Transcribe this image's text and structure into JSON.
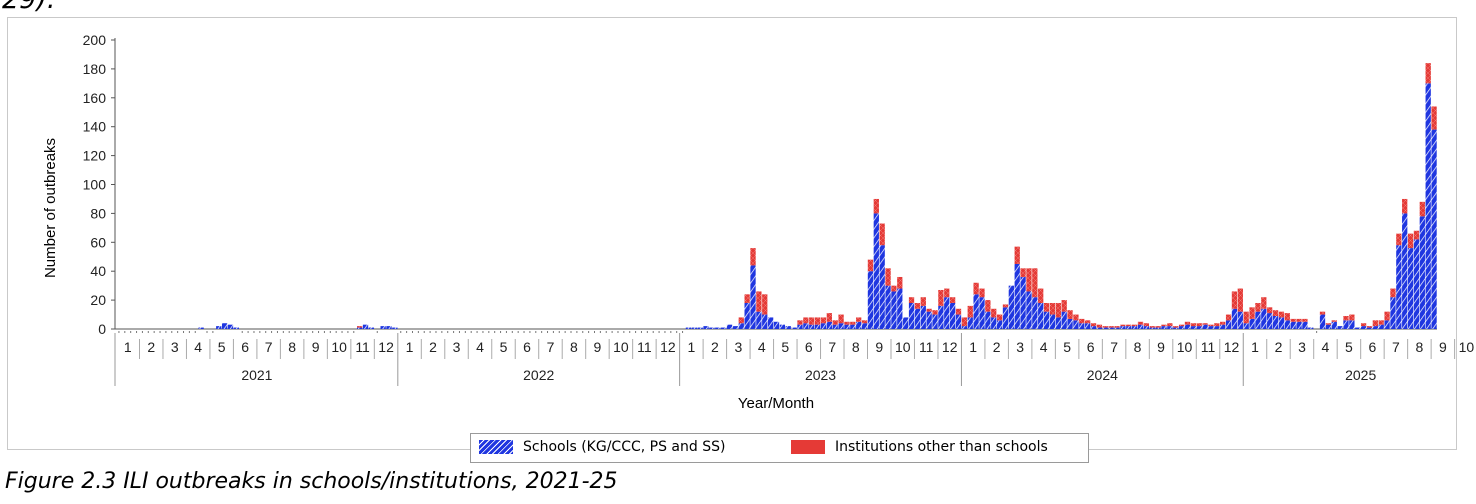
{
  "top_text": "29).",
  "caption": "Figure 2.3 ILI outbreaks in schools/institutions, 2021-25",
  "colors": {
    "schools": "#1f36e0",
    "schools_stripe": "#ffffff",
    "others": "#e53a36",
    "axis": "#555555",
    "tick_text": "#222222"
  },
  "chart_data": {
    "type": "bar",
    "stacked": true,
    "xlabel": "Year/Month",
    "ylabel": "Number of outbreaks",
    "ylim": [
      0,
      200
    ],
    "yticks": [
      0,
      20,
      40,
      60,
      80,
      100,
      120,
      140,
      160,
      180,
      200
    ],
    "grid": false,
    "legend_position": "bottom",
    "years": [
      "2021",
      "2022",
      "2023",
      "2024",
      "2025"
    ],
    "months_per_year": [
      12,
      12,
      12,
      12,
      10
    ],
    "month_labels": [
      "1",
      "2",
      "3",
      "4",
      "5",
      "6",
      "7",
      "8",
      "9",
      "10",
      "11",
      "12"
    ],
    "series": [
      {
        "name": "Schools (KG/CCC, PS and SS)",
        "color_key": "schools",
        "values": [
          0,
          0,
          0,
          0,
          0,
          0,
          0,
          0,
          0,
          0,
          0,
          0,
          0,
          0,
          1,
          0,
          0,
          2,
          4,
          3,
          1,
          0,
          0,
          0,
          0,
          0,
          0,
          0,
          0,
          0,
          0,
          0,
          0,
          0,
          0,
          0,
          0,
          0,
          0,
          0,
          0,
          1,
          3,
          1,
          0,
          2,
          2,
          1,
          0,
          0,
          0,
          0,
          0,
          0,
          0,
          0,
          0,
          0,
          0,
          0,
          0,
          0,
          0,
          0,
          0,
          0,
          0,
          0,
          0,
          0,
          0,
          0,
          0,
          0,
          0,
          0,
          0,
          0,
          0,
          0,
          0,
          0,
          0,
          0,
          0,
          0,
          0,
          0,
          0,
          0,
          0,
          0,
          0,
          0,
          0,
          0,
          0,
          1,
          1,
          1,
          2,
          1,
          1,
          1,
          3,
          2,
          4,
          18,
          44,
          12,
          10,
          8,
          5,
          3,
          2,
          1,
          3,
          4,
          3,
          3,
          4,
          5,
          3,
          4,
          3,
          3,
          5,
          4,
          40,
          80,
          58,
          30,
          26,
          28,
          8,
          18,
          14,
          16,
          12,
          10,
          16,
          22,
          18,
          10,
          2,
          8,
          24,
          22,
          12,
          8,
          6,
          15,
          30,
          45,
          36,
          26,
          22,
          18,
          12,
          10,
          8,
          12,
          7,
          6,
          4,
          4,
          2,
          1,
          1,
          1,
          1,
          2,
          2,
          2,
          3,
          2,
          1,
          1,
          2,
          2,
          1,
          2,
          3,
          2,
          2,
          3,
          2,
          2,
          3,
          6,
          14,
          12,
          4,
          7,
          12,
          14,
          11,
          9,
          8,
          6,
          5,
          5,
          5,
          1,
          0,
          10,
          3,
          5,
          2,
          6,
          6,
          1,
          2,
          1,
          2,
          3,
          6,
          22,
          58,
          80,
          56,
          62,
          78,
          170,
          138
        ]
      },
      {
        "name": "Institutions other than schools",
        "color_key": "others",
        "values": [
          0,
          0,
          0,
          0,
          0,
          0,
          0,
          0,
          0,
          0,
          0,
          0,
          0,
          0,
          0,
          0,
          0,
          0,
          0,
          0,
          0,
          0,
          0,
          0,
          0,
          0,
          0,
          0,
          0,
          0,
          0,
          0,
          0,
          0,
          0,
          0,
          0,
          0,
          0,
          0,
          0,
          1,
          0,
          0,
          0,
          0,
          0,
          0,
          0,
          0,
          0,
          0,
          0,
          0,
          0,
          0,
          0,
          0,
          0,
          0,
          0,
          0,
          0,
          0,
          0,
          0,
          0,
          0,
          0,
          0,
          0,
          0,
          0,
          0,
          0,
          0,
          0,
          0,
          0,
          0,
          0,
          0,
          0,
          0,
          0,
          0,
          0,
          0,
          0,
          0,
          0,
          0,
          0,
          0,
          0,
          0,
          0,
          0,
          0,
          0,
          0,
          0,
          0,
          0,
          0,
          0,
          4,
          6,
          12,
          14,
          14,
          0,
          0,
          0,
          0,
          0,
          3,
          4,
          5,
          5,
          4,
          6,
          3,
          6,
          2,
          2,
          3,
          2,
          8,
          10,
          15,
          12,
          4,
          8,
          0,
          4,
          4,
          6,
          2,
          3,
          11,
          6,
          4,
          4,
          6,
          8,
          8,
          6,
          8,
          6,
          4,
          2,
          0,
          12,
          6,
          16,
          20,
          10,
          6,
          8,
          10,
          8,
          6,
          4,
          3,
          2,
          2,
          2,
          1,
          1,
          1,
          1,
          1,
          1,
          2,
          2,
          1,
          1,
          1,
          2,
          1,
          1,
          2,
          2,
          2,
          1,
          1,
          2,
          2,
          4,
          12,
          16,
          8,
          8,
          6,
          8,
          4,
          4,
          4,
          5,
          2,
          2,
          2,
          0,
          0,
          2,
          1,
          1,
          0,
          3,
          4,
          0,
          2,
          1,
          4,
          3,
          6,
          6,
          8,
          10,
          10,
          6,
          10,
          14,
          16
        ]
      }
    ]
  }
}
